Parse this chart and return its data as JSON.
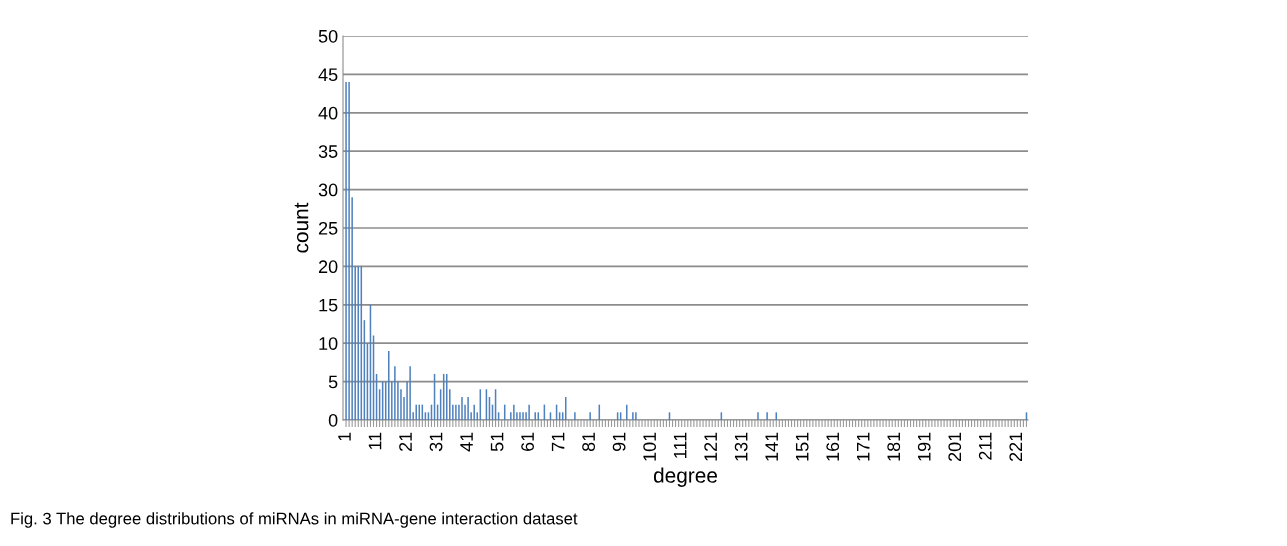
{
  "chart_data": {
    "type": "bar",
    "xlabel": "degree",
    "ylabel": "count",
    "color": "#4f81bd",
    "ylim": [
      0,
      50
    ],
    "yticks": [
      0,
      5,
      10,
      15,
      20,
      25,
      30,
      35,
      40,
      45,
      50
    ],
    "grid": "y",
    "legend": false,
    "categories": [
      "1",
      null,
      null,
      null,
      null,
      null,
      null,
      null,
      null,
      null,
      "11",
      null,
      null,
      null,
      null,
      null,
      null,
      null,
      null,
      null,
      "21",
      null,
      null,
      null,
      null,
      null,
      null,
      null,
      null,
      null,
      "31",
      null,
      null,
      null,
      null,
      null,
      null,
      null,
      null,
      null,
      "41",
      null,
      null,
      null,
      null,
      null,
      null,
      null,
      null,
      null,
      "51",
      null,
      null,
      null,
      null,
      null,
      null,
      null,
      null,
      null,
      "61",
      null,
      null,
      null,
      null,
      null,
      null,
      null,
      null,
      null,
      "71",
      null,
      null,
      null,
      null,
      null,
      null,
      null,
      null,
      null,
      "81",
      null,
      null,
      null,
      null,
      null,
      null,
      null,
      null,
      null,
      "91",
      null,
      null,
      null,
      null,
      null,
      null,
      null,
      null,
      null,
      "101",
      null,
      null,
      null,
      null,
      null,
      null,
      null,
      null,
      null,
      "111",
      null,
      null,
      null,
      null,
      null,
      null,
      null,
      null,
      null,
      "121",
      null,
      null,
      null,
      null,
      null,
      null,
      null,
      null,
      null,
      "131",
      null,
      null,
      null,
      null,
      null,
      null,
      null,
      null,
      null,
      "141",
      null,
      null,
      null,
      null,
      null,
      null,
      null,
      null,
      null,
      "151",
      null,
      null,
      null,
      null,
      null,
      null,
      null,
      null,
      null,
      "161",
      null,
      null,
      null,
      null,
      null,
      null,
      null,
      null,
      null,
      "171",
      null,
      null,
      null,
      null,
      null,
      null,
      null,
      null,
      null,
      "181",
      null,
      null,
      null,
      null,
      null,
      null,
      null,
      null,
      null,
      "191",
      null,
      null,
      null,
      null,
      null,
      null,
      null,
      null,
      null,
      "201",
      null,
      null,
      null,
      null,
      null,
      null,
      null,
      null,
      null,
      "211",
      null,
      null,
      null,
      null,
      null,
      null,
      null,
      null,
      null,
      "221",
      null,
      null,
      null
    ],
    "values": [
      44,
      44,
      29,
      20,
      20,
      20,
      13,
      10,
      15,
      11,
      6,
      4,
      5,
      5,
      9,
      5,
      7,
      5,
      4,
      3,
      5,
      7,
      1,
      2,
      2,
      2,
      1,
      1,
      2,
      6,
      2,
      4,
      6,
      6,
      4,
      2,
      2,
      2,
      3,
      2,
      3,
      1,
      2,
      1,
      4,
      0,
      4,
      3,
      2,
      4,
      1,
      0,
      2,
      0,
      1,
      2,
      1,
      1,
      1,
      1,
      2,
      0,
      1,
      1,
      0,
      2,
      0,
      1,
      0,
      2,
      1,
      1,
      3,
      0,
      0,
      1,
      0,
      0,
      0,
      0,
      1,
      0,
      0,
      2,
      0,
      0,
      0,
      0,
      0,
      1,
      1,
      0,
      2,
      0,
      1,
      1,
      0,
      0,
      0,
      0,
      0,
      0,
      0,
      0,
      0,
      0,
      1,
      0,
      0,
      0,
      0,
      0,
      0,
      0,
      0,
      0,
      0,
      0,
      0,
      0,
      0,
      0,
      0,
      1,
      0,
      0,
      0,
      0,
      0,
      0,
      0,
      0,
      0,
      0,
      0,
      1,
      0,
      0,
      1,
      0,
      0,
      1,
      0,
      0,
      0,
      0,
      0,
      0,
      0,
      0,
      0,
      0,
      0,
      0,
      0,
      0,
      0,
      0,
      0,
      0,
      0,
      0,
      0,
      0,
      0,
      0,
      0,
      0,
      0,
      0,
      0,
      0,
      0,
      0,
      0,
      0,
      0,
      0,
      0,
      0,
      0,
      0,
      0,
      0,
      0,
      0,
      0,
      0,
      0,
      0,
      0,
      0,
      0,
      0,
      0,
      0,
      0,
      0,
      0,
      0,
      0,
      0,
      0,
      0,
      0,
      0,
      0,
      0,
      0,
      0,
      0,
      0,
      0,
      0,
      0,
      0,
      0,
      0,
      0,
      0,
      0,
      0,
      0,
      1
    ],
    "annotations": [
      "Fig. 3 The degree distributions of miRNAs in miRNA-gene interaction dataset"
    ]
  }
}
